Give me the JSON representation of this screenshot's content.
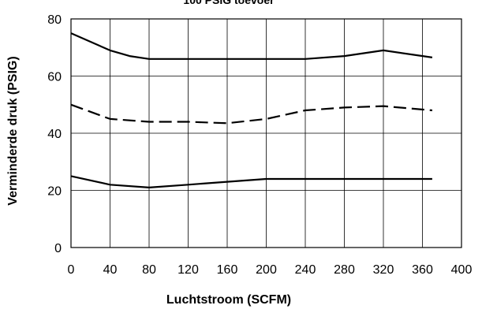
{
  "chart_data": {
    "type": "line",
    "title": "100 PSIG toevoer",
    "xlabel": "Luchtstroom (SCFM)",
    "ylabel": "Verminderde druk (PSIG)",
    "xlim": [
      0,
      400
    ],
    "ylim": [
      0,
      80
    ],
    "xticks": [
      0,
      40,
      80,
      120,
      160,
      200,
      240,
      280,
      320,
      360,
      400
    ],
    "yticks": [
      0,
      20,
      40,
      60,
      80
    ],
    "grid": true,
    "legend": "none",
    "series": [
      {
        "style": "solid",
        "x": [
          0,
          40,
          60,
          80,
          120,
          160,
          200,
          240,
          280,
          320,
          370
        ],
        "y": [
          75,
          69,
          67,
          66,
          66,
          66,
          66,
          66,
          67,
          69,
          66.5
        ]
      },
      {
        "style": "dashed",
        "x": [
          0,
          40,
          80,
          120,
          160,
          200,
          240,
          280,
          320,
          370
        ],
        "y": [
          50,
          45,
          44,
          44,
          43.5,
          45,
          48,
          49,
          49.5,
          48
        ]
      },
      {
        "style": "solid",
        "x": [
          0,
          40,
          80,
          120,
          160,
          200,
          240,
          280,
          320,
          370
        ],
        "y": [
          25,
          22,
          21,
          22,
          23,
          24,
          24,
          24,
          24,
          24
        ]
      }
    ]
  }
}
